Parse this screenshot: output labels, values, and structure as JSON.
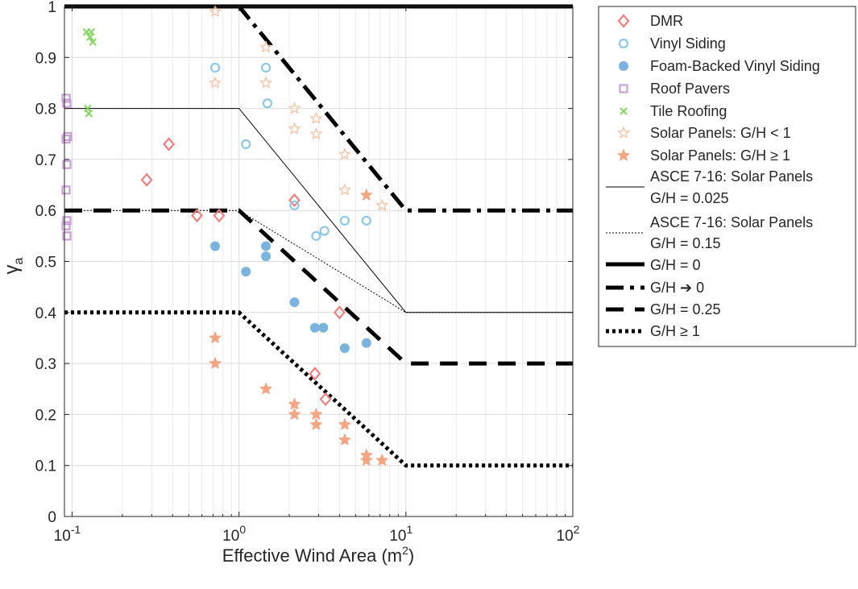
{
  "chart_data": {
    "type": "scatter",
    "x_scale": "log",
    "xlim": [
      0.09,
      100
    ],
    "ylim": [
      0,
      1
    ],
    "grid": true,
    "legend_position": "outside-right-top",
    "xlabel": {
      "main": "Effective Wind Area (m",
      "sup": "2",
      "end": ")"
    },
    "ylabel": {
      "main": "γ",
      "sub": "a"
    },
    "x_ticks": [
      {
        "base": "10",
        "exp": "-1",
        "value": 0.1
      },
      {
        "base": "10",
        "exp": "0",
        "value": 1
      },
      {
        "base": "10",
        "exp": "1",
        "value": 10
      },
      {
        "base": "10",
        "exp": "2",
        "value": 100
      }
    ],
    "y_ticks": [
      {
        "label": "0",
        "value": 0
      },
      {
        "label": "0.1",
        "value": 0.1
      },
      {
        "label": "0.2",
        "value": 0.2
      },
      {
        "label": "0.3",
        "value": 0.3
      },
      {
        "label": "0.4",
        "value": 0.4
      },
      {
        "label": "0.5",
        "value": 0.5
      },
      {
        "label": "0.6",
        "value": 0.6
      },
      {
        "label": "0.7",
        "value": 0.7
      },
      {
        "label": "0.8",
        "value": 0.8
      },
      {
        "label": "0.9",
        "value": 0.9
      },
      {
        "label": "1",
        "value": 1
      }
    ],
    "scatter_series": [
      {
        "name": "DMR",
        "marker": "diamond",
        "color": "#f08080",
        "filled": false,
        "points": [
          [
            0.28,
            0.66
          ],
          [
            0.38,
            0.73
          ],
          [
            0.56,
            0.59
          ],
          [
            0.76,
            0.59
          ],
          [
            2.15,
            0.62
          ],
          [
            2.85,
            0.28
          ],
          [
            3.3,
            0.23
          ],
          [
            4.0,
            0.4
          ]
        ]
      },
      {
        "name": "Vinyl Siding",
        "marker": "circle",
        "color": "#8ec8e8",
        "filled": false,
        "points": [
          [
            0.72,
            0.88
          ],
          [
            1.45,
            0.88
          ],
          [
            1.48,
            0.81
          ],
          [
            1.1,
            0.73
          ],
          [
            2.15,
            0.61
          ],
          [
            2.9,
            0.55
          ],
          [
            3.25,
            0.56
          ],
          [
            4.3,
            0.58
          ],
          [
            5.8,
            0.58
          ]
        ]
      },
      {
        "name": "Foam-Backed Vinyl Siding",
        "marker": "circle",
        "color": "#7ab4de",
        "filled": true,
        "points": [
          [
            0.72,
            0.53
          ],
          [
            1.45,
            0.53
          ],
          [
            1.45,
            0.51
          ],
          [
            1.1,
            0.48
          ],
          [
            2.15,
            0.42
          ],
          [
            2.85,
            0.37
          ],
          [
            3.2,
            0.37
          ],
          [
            4.3,
            0.33
          ],
          [
            5.8,
            0.34
          ]
        ]
      },
      {
        "name": "Roof Pavers",
        "marker": "square",
        "color": "#c9a0d8",
        "filled": false,
        "points": [
          [
            0.092,
            0.82
          ],
          [
            0.093,
            0.81
          ],
          [
            0.094,
            0.745
          ],
          [
            0.092,
            0.74
          ],
          [
            0.093,
            0.69
          ],
          [
            0.092,
            0.64
          ],
          [
            0.093,
            0.58
          ],
          [
            0.092,
            0.57
          ],
          [
            0.093,
            0.55
          ]
        ]
      },
      {
        "name": "Tile Roofing",
        "marker": "x",
        "color": "#7fd65a",
        "filled": false,
        "points": [
          [
            0.122,
            0.95
          ],
          [
            0.13,
            0.95
          ],
          [
            0.128,
            0.94
          ],
          [
            0.133,
            0.93
          ],
          [
            0.124,
            0.8
          ],
          [
            0.126,
            0.79
          ]
        ]
      },
      {
        "name": "Solar Panels: G/H < 1",
        "marker": "star",
        "color": "#f8c6a8",
        "filled": false,
        "points": [
          [
            0.72,
            0.99
          ],
          [
            0.72,
            0.85
          ],
          [
            1.45,
            0.92
          ],
          [
            1.45,
            0.85
          ],
          [
            2.15,
            0.8
          ],
          [
            2.15,
            0.76
          ],
          [
            2.9,
            0.78
          ],
          [
            2.9,
            0.75
          ],
          [
            4.3,
            0.71
          ],
          [
            4.3,
            0.64
          ],
          [
            7.2,
            0.61
          ]
        ]
      },
      {
        "name": "Solar Panels: G/H ≥ 1",
        "marker": "star",
        "color": "#f4a582",
        "filled": true,
        "points": [
          [
            0.72,
            0.35
          ],
          [
            0.72,
            0.3
          ],
          [
            1.45,
            0.25
          ],
          [
            2.15,
            0.22
          ],
          [
            2.15,
            0.2
          ],
          [
            2.9,
            0.2
          ],
          [
            2.9,
            0.18
          ],
          [
            4.3,
            0.18
          ],
          [
            4.3,
            0.15
          ],
          [
            5.8,
            0.12
          ],
          [
            5.8,
            0.11
          ],
          [
            7.2,
            0.11
          ],
          [
            5.8,
            0.63
          ]
        ]
      }
    ],
    "line_series": [
      {
        "name": "ASCE 7-16: Solar Panels G/H = 0.025",
        "legend_lines": [
          "ASCE 7-16: Solar Panels",
          "G/H = 0.025"
        ],
        "style": "solid-thin",
        "points": [
          [
            0.09,
            0.8
          ],
          [
            1,
            0.8
          ],
          [
            10,
            0.4
          ],
          [
            100,
            0.4
          ]
        ]
      },
      {
        "name": "ASCE 7-16: Solar Panels G/H = 0.15",
        "legend_lines": [
          "ASCE 7-16: Solar Panels",
          "G/H = 0.15"
        ],
        "style": "dotted-thin",
        "points": [
          [
            0.09,
            0.6
          ],
          [
            1,
            0.6
          ],
          [
            10,
            0.4
          ],
          [
            100,
            0.4
          ]
        ]
      },
      {
        "name": "G/H = 0",
        "legend_lines": [
          "G/H = 0"
        ],
        "style": "solid-thick",
        "points": [
          [
            0.09,
            1.0
          ],
          [
            100,
            1.0
          ]
        ]
      },
      {
        "name": "G/H → 0",
        "legend_lines": [
          "G/H ➔ 0"
        ],
        "style": "dashdot-thick",
        "points": [
          [
            0.09,
            1.0
          ],
          [
            1,
            1.0
          ],
          [
            10,
            0.6
          ],
          [
            100,
            0.6
          ]
        ]
      },
      {
        "name": "G/H = 0.25",
        "legend_lines": [
          "G/H = 0.25"
        ],
        "style": "dashed-thick",
        "points": [
          [
            0.09,
            0.6
          ],
          [
            1,
            0.6
          ],
          [
            10,
            0.3
          ],
          [
            100,
            0.3
          ]
        ]
      },
      {
        "name": "G/H ≥ 1",
        "legend_lines": [
          "G/H ≥ 1"
        ],
        "style": "dotted-thick",
        "points": [
          [
            0.09,
            0.4
          ],
          [
            1,
            0.4
          ],
          [
            10,
            0.1
          ],
          [
            100,
            0.1
          ]
        ]
      }
    ],
    "legend_order": [
      "DMR",
      "Vinyl Siding",
      "Foam-Backed Vinyl Siding",
      "Roof Pavers",
      "Tile Roofing",
      "Solar Panels: G/H < 1",
      "Solar Panels: G/H ≥ 1",
      "ASCE 7-16: Solar Panels G/H = 0.025",
      "ASCE 7-16: Solar Panels G/H = 0.15",
      "G/H = 0",
      "G/H → 0",
      "G/H = 0.25",
      "G/H ≥ 1"
    ]
  }
}
